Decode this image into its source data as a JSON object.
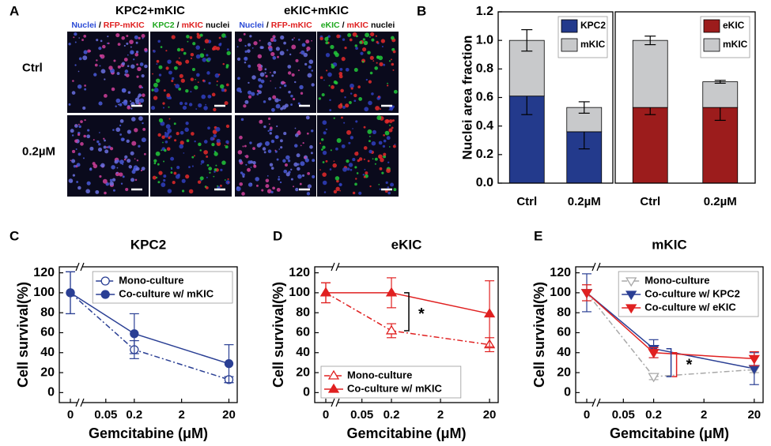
{
  "panel_labels": [
    "A",
    "B",
    "C",
    "D",
    "E"
  ],
  "panel_a": {
    "groups": [
      "KPC2+mKIC",
      "eKIC+mKIC"
    ],
    "columns": [
      [
        {
          "text": "Nuclei",
          "color": "#2b4bd6"
        },
        {
          "text": "/",
          "color": "#000000"
        },
        {
          "text": "RFP-mKIC",
          "color": "#e02020"
        }
      ],
      [
        {
          "text": "KPC2",
          "color": "#1fa81f"
        },
        {
          "text": "/",
          "color": "#000000"
        },
        {
          "text": "mKIC",
          "color": "#e02020"
        },
        {
          "text": "nuclei",
          "color": "#000000"
        }
      ],
      [
        {
          "text": "Nuclei",
          "color": "#2b4bd6"
        },
        {
          "text": "/",
          "color": "#000000"
        },
        {
          "text": "RFP-mKIC",
          "color": "#e02020"
        }
      ],
      [
        {
          "text": "eKIC",
          "color": "#1fa81f"
        },
        {
          "text": "/",
          "color": "#000000"
        },
        {
          "text": "mKIC",
          "color": "#e02020"
        },
        {
          "text": "nuclei",
          "color": "#000000"
        }
      ]
    ],
    "rows": [
      "Ctrl",
      "0.2µM"
    ]
  },
  "chart_data": [
    {
      "type": "bar",
      "stacked": true,
      "categories": [
        "Ctrl",
        "0.2µM"
      ],
      "y_label": "Nuclei area fraction",
      "ylim": [
        0,
        1.2
      ],
      "yticks": [
        {
          "value": 0,
          "label": "0.0"
        },
        0.2,
        0.4,
        0.6,
        0.8,
        {
          "value": 1,
          "label": "1.0"
        },
        1.2
      ],
      "legend": "upper right",
      "series": [
        {
          "name": "KPC2",
          "color": "#233a8c",
          "values": [
            0.61,
            0.36
          ],
          "errors": [
            0.13,
            0.12
          ]
        },
        {
          "name": "mKIC",
          "color": "#c8c9cb",
          "values": [
            0.39,
            0.17
          ],
          "errors": [
            0.075,
            0.04
          ]
        }
      ]
    },
    {
      "type": "bar",
      "stacked": true,
      "categories": [
        "Ctrl",
        "0.2µM"
      ],
      "ylim": [
        0,
        1.2
      ],
      "legend": "upper right",
      "series": [
        {
          "name": "eKIC",
          "color": "#9c1c1c",
          "values": [
            0.53,
            0.53
          ],
          "errors": [
            0.05,
            0.09
          ]
        },
        {
          "name": "mKIC",
          "color": "#c8c9cb",
          "values": [
            0.47,
            0.18
          ],
          "errors": [
            0.03,
            0.01
          ]
        }
      ]
    },
    {
      "type": "line",
      "title": "KPC2",
      "x": [
        0,
        0.2,
        20
      ],
      "x_scale": "log",
      "x_break": true,
      "xlim": [
        0.02,
        30
      ],
      "xticks": [
        0,
        0.05,
        0.2,
        2,
        20
      ],
      "ylim": [
        -10,
        126
      ],
      "yticks": [
        0,
        20,
        40,
        60,
        80,
        100,
        120
      ],
      "x_label": "Gemcitabine (μM)",
      "y_label": "Cell survival(%)",
      "legend": "upper right",
      "series": [
        {
          "name": "Mono-culture",
          "color": "#2a3f94",
          "values": [
            100,
            43,
            13
          ],
          "errors": [
            21,
            9,
            3
          ],
          "marker": "circle",
          "filled": false,
          "dash": "dashdot"
        },
        {
          "name": "Co-culture w/ mKIC",
          "color": "#2a3f94",
          "values": [
            100,
            59,
            29
          ],
          "errors": [
            21,
            20,
            19
          ],
          "marker": "circle",
          "filled": true,
          "dash": "solid"
        }
      ]
    },
    {
      "type": "line",
      "title": "eKIC",
      "x": [
        0,
        0.2,
        20
      ],
      "x_scale": "log",
      "x_break": true,
      "xlim": [
        0.02,
        30
      ],
      "xticks": [
        0,
        0.05,
        0.2,
        2,
        20
      ],
      "ylim": [
        -10,
        126
      ],
      "yticks": [
        0,
        20,
        40,
        60,
        80,
        100,
        120
      ],
      "x_label": "Gemcitabine (μM)",
      "y_label": "Cell survival(%)",
      "legend": "lower left",
      "annotation": "*",
      "bracket_colored": false,
      "series": [
        {
          "name": "Mono-culture",
          "color": "#e02020",
          "values": [
            100,
            62,
            48
          ],
          "errors": [
            10,
            7,
            7
          ],
          "marker": "triangle-up",
          "filled": false,
          "dash": "dashdot"
        },
        {
          "name": "Co-culture w/ mKIC",
          "color": "#e02020",
          "values": [
            100,
            100,
            79
          ],
          "errors": [
            10,
            15,
            33
          ],
          "marker": "triangle-up",
          "filled": true,
          "dash": "solid"
        }
      ]
    },
    {
      "type": "line",
      "title": "mKIC",
      "x": [
        0,
        0.2,
        20
      ],
      "x_scale": "log",
      "x_break": true,
      "xlim": [
        0.02,
        30
      ],
      "xticks": [
        0,
        0.05,
        0.2,
        2,
        20
      ],
      "ylim": [
        -10,
        126
      ],
      "yticks": [
        0,
        20,
        40,
        60,
        80,
        100,
        120
      ],
      "x_label": "Gemcitabine (μM)",
      "y_label": "Cell survival(%)",
      "legend": "upper right",
      "annotation": "*",
      "bracket_colored": true,
      "series": [
        {
          "name": "Mono-culture",
          "color": "#a8a8a8",
          "values": [
            100,
            16,
            23
          ],
          "errors": [
            8,
            3,
            3
          ],
          "marker": "triangle-down",
          "filled": false,
          "dash": "dashdot"
        },
        {
          "name": "Co-culture w/ KPC2",
          "color": "#2a3f94",
          "values": [
            100,
            44,
            24
          ],
          "errors": [
            19,
            9,
            16
          ],
          "marker": "triangle-down",
          "filled": true,
          "dash": "solid"
        },
        {
          "name": "Co-culture w/ eKIC",
          "color": "#e02020",
          "values": [
            100,
            40,
            34
          ],
          "errors": [
            8,
            5,
            7
          ],
          "marker": "triangle-down",
          "filled": true,
          "dash": "solid"
        }
      ]
    }
  ]
}
